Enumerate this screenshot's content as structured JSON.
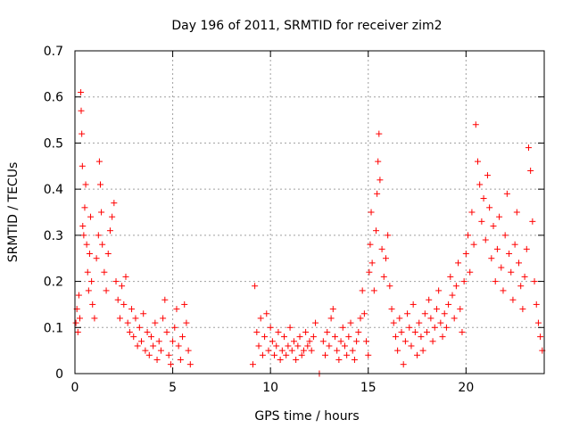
{
  "chart_data": {
    "type": "scatter",
    "title": "Day 196 of 2011, SRMTID for receiver zim2",
    "xlabel": "GPS time / hours",
    "ylabel": "SRMTID / TECUs",
    "xlim": [
      0,
      24
    ],
    "ylim": [
      0,
      0.7
    ],
    "x_ticks": [
      0,
      5,
      10,
      15,
      20
    ],
    "x_tick_labels": [
      "0",
      "5",
      "10",
      "15",
      "20"
    ],
    "y_ticks": [
      0,
      0.1,
      0.2,
      0.3,
      0.4,
      0.5,
      0.6,
      0.7
    ],
    "y_tick_labels": [
      "0",
      "0.1",
      "0.2",
      "0.3",
      "0.4",
      "0.5",
      "0.6",
      "0.7"
    ],
    "grid": true,
    "marker": "+",
    "series": [
      {
        "name": "SRMTID",
        "color": "#ff0000",
        "points": [
          [
            0.05,
            0.11
          ],
          [
            0.1,
            0.14
          ],
          [
            0.15,
            0.09
          ],
          [
            0.2,
            0.17
          ],
          [
            0.25,
            0.12
          ],
          [
            0.3,
            0.61
          ],
          [
            0.32,
            0.57
          ],
          [
            0.35,
            0.52
          ],
          [
            0.38,
            0.45
          ],
          [
            0.4,
            0.32
          ],
          [
            0.45,
            0.3
          ],
          [
            0.5,
            0.36
          ],
          [
            0.55,
            0.41
          ],
          [
            0.6,
            0.28
          ],
          [
            0.65,
            0.22
          ],
          [
            0.7,
            0.18
          ],
          [
            0.75,
            0.26
          ],
          [
            0.8,
            0.34
          ],
          [
            0.85,
            0.2
          ],
          [
            0.9,
            0.15
          ],
          [
            1.0,
            0.12
          ],
          [
            1.1,
            0.25
          ],
          [
            1.2,
            0.3
          ],
          [
            1.25,
            0.46
          ],
          [
            1.3,
            0.41
          ],
          [
            1.35,
            0.35
          ],
          [
            1.4,
            0.28
          ],
          [
            1.5,
            0.22
          ],
          [
            1.6,
            0.18
          ],
          [
            1.7,
            0.26
          ],
          [
            1.8,
            0.31
          ],
          [
            1.9,
            0.34
          ],
          [
            2.0,
            0.37
          ],
          [
            2.1,
            0.2
          ],
          [
            2.2,
            0.16
          ],
          [
            2.3,
            0.12
          ],
          [
            2.4,
            0.19
          ],
          [
            2.5,
            0.15
          ],
          [
            2.6,
            0.21
          ],
          [
            2.7,
            0.11
          ],
          [
            2.8,
            0.09
          ],
          [
            2.9,
            0.14
          ],
          [
            3.0,
            0.08
          ],
          [
            3.1,
            0.12
          ],
          [
            3.2,
            0.06
          ],
          [
            3.3,
            0.1
          ],
          [
            3.4,
            0.07
          ],
          [
            3.5,
            0.13
          ],
          [
            3.6,
            0.05
          ],
          [
            3.7,
            0.09
          ],
          [
            3.8,
            0.04
          ],
          [
            3.9,
            0.08
          ],
          [
            4.0,
            0.06
          ],
          [
            4.1,
            0.11
          ],
          [
            4.2,
            0.03
          ],
          [
            4.3,
            0.07
          ],
          [
            4.4,
            0.05
          ],
          [
            4.5,
            0.12
          ],
          [
            4.6,
            0.16
          ],
          [
            4.7,
            0.09
          ],
          [
            4.8,
            0.04
          ],
          [
            4.9,
            0.02
          ],
          [
            5.0,
            0.07
          ],
          [
            5.1,
            0.1
          ],
          [
            5.2,
            0.14
          ],
          [
            5.3,
            0.06
          ],
          [
            5.4,
            0.03
          ],
          [
            5.5,
            0.08
          ],
          [
            5.6,
            0.15
          ],
          [
            5.7,
            0.11
          ],
          [
            5.8,
            0.05
          ],
          [
            5.9,
            0.02
          ],
          [
            9.1,
            0.02
          ],
          [
            9.2,
            0.19
          ],
          [
            9.3,
            0.09
          ],
          [
            9.4,
            0.06
          ],
          [
            9.5,
            0.12
          ],
          [
            9.6,
            0.04
          ],
          [
            9.7,
            0.08
          ],
          [
            9.8,
            0.13
          ],
          [
            9.9,
            0.05
          ],
          [
            10.0,
            0.1
          ],
          [
            10.1,
            0.07
          ],
          [
            10.2,
            0.04
          ],
          [
            10.3,
            0.06
          ],
          [
            10.4,
            0.09
          ],
          [
            10.5,
            0.03
          ],
          [
            10.6,
            0.05
          ],
          [
            10.7,
            0.08
          ],
          [
            10.8,
            0.04
          ],
          [
            10.9,
            0.06
          ],
          [
            11.0,
            0.1
          ],
          [
            11.1,
            0.05
          ],
          [
            11.2,
            0.07
          ],
          [
            11.3,
            0.03
          ],
          [
            11.4,
            0.06
          ],
          [
            11.5,
            0.08
          ],
          [
            11.6,
            0.04
          ],
          [
            11.7,
            0.05
          ],
          [
            11.8,
            0.09
          ],
          [
            11.9,
            0.06
          ],
          [
            12.0,
            0.07
          ],
          [
            12.1,
            0.05
          ],
          [
            12.2,
            0.08
          ],
          [
            12.3,
            0.11
          ],
          [
            12.5,
            0.0
          ],
          [
            12.7,
            0.07
          ],
          [
            12.8,
            0.04
          ],
          [
            12.9,
            0.09
          ],
          [
            13.0,
            0.06
          ],
          [
            13.1,
            0.12
          ],
          [
            13.2,
            0.14
          ],
          [
            13.3,
            0.08
          ],
          [
            13.4,
            0.05
          ],
          [
            13.5,
            0.03
          ],
          [
            13.6,
            0.07
          ],
          [
            13.7,
            0.1
          ],
          [
            13.8,
            0.06
          ],
          [
            13.9,
            0.04
          ],
          [
            14.0,
            0.08
          ],
          [
            14.1,
            0.11
          ],
          [
            14.2,
            0.05
          ],
          [
            14.3,
            0.03
          ],
          [
            14.4,
            0.07
          ],
          [
            14.5,
            0.09
          ],
          [
            14.6,
            0.12
          ],
          [
            14.7,
            0.18
          ],
          [
            14.8,
            0.13
          ],
          [
            14.9,
            0.07
          ],
          [
            15.0,
            0.04
          ],
          [
            15.05,
            0.22
          ],
          [
            15.1,
            0.28
          ],
          [
            15.15,
            0.35
          ],
          [
            15.2,
            0.24
          ],
          [
            15.3,
            0.18
          ],
          [
            15.4,
            0.31
          ],
          [
            15.45,
            0.39
          ],
          [
            15.5,
            0.46
          ],
          [
            15.55,
            0.52
          ],
          [
            15.6,
            0.42
          ],
          [
            15.7,
            0.27
          ],
          [
            15.8,
            0.21
          ],
          [
            15.9,
            0.25
          ],
          [
            16.0,
            0.3
          ],
          [
            16.1,
            0.19
          ],
          [
            16.2,
            0.14
          ],
          [
            16.3,
            0.11
          ],
          [
            16.4,
            0.08
          ],
          [
            16.5,
            0.05
          ],
          [
            16.6,
            0.12
          ],
          [
            16.7,
            0.09
          ],
          [
            16.8,
            0.02
          ],
          [
            16.9,
            0.07
          ],
          [
            17.0,
            0.13
          ],
          [
            17.1,
            0.1
          ],
          [
            17.2,
            0.06
          ],
          [
            17.3,
            0.15
          ],
          [
            17.4,
            0.09
          ],
          [
            17.5,
            0.04
          ],
          [
            17.6,
            0.11
          ],
          [
            17.7,
            0.08
          ],
          [
            17.8,
            0.05
          ],
          [
            17.9,
            0.13
          ],
          [
            18.0,
            0.09
          ],
          [
            18.1,
            0.16
          ],
          [
            18.2,
            0.12
          ],
          [
            18.3,
            0.07
          ],
          [
            18.4,
            0.1
          ],
          [
            18.5,
            0.14
          ],
          [
            18.6,
            0.18
          ],
          [
            18.7,
            0.11
          ],
          [
            18.8,
            0.08
          ],
          [
            18.9,
            0.13
          ],
          [
            19.0,
            0.1
          ],
          [
            19.1,
            0.15
          ],
          [
            19.2,
            0.21
          ],
          [
            19.3,
            0.17
          ],
          [
            19.4,
            0.12
          ],
          [
            19.5,
            0.19
          ],
          [
            19.6,
            0.24
          ],
          [
            19.7,
            0.14
          ],
          [
            19.8,
            0.09
          ],
          [
            19.9,
            0.2
          ],
          [
            20.0,
            0.26
          ],
          [
            20.1,
            0.3
          ],
          [
            20.2,
            0.22
          ],
          [
            20.3,
            0.35
          ],
          [
            20.4,
            0.28
          ],
          [
            20.5,
            0.54
          ],
          [
            20.6,
            0.46
          ],
          [
            20.7,
            0.41
          ],
          [
            20.8,
            0.33
          ],
          [
            20.9,
            0.38
          ],
          [
            21.0,
            0.29
          ],
          [
            21.1,
            0.43
          ],
          [
            21.2,
            0.36
          ],
          [
            21.3,
            0.25
          ],
          [
            21.4,
            0.32
          ],
          [
            21.5,
            0.2
          ],
          [
            21.6,
            0.27
          ],
          [
            21.7,
            0.34
          ],
          [
            21.8,
            0.23
          ],
          [
            21.9,
            0.18
          ],
          [
            22.0,
            0.3
          ],
          [
            22.1,
            0.39
          ],
          [
            22.2,
            0.26
          ],
          [
            22.3,
            0.22
          ],
          [
            22.4,
            0.16
          ],
          [
            22.5,
            0.28
          ],
          [
            22.6,
            0.35
          ],
          [
            22.7,
            0.24
          ],
          [
            22.8,
            0.19
          ],
          [
            22.9,
            0.14
          ],
          [
            23.0,
            0.21
          ],
          [
            23.1,
            0.27
          ],
          [
            23.2,
            0.49
          ],
          [
            23.3,
            0.44
          ],
          [
            23.4,
            0.33
          ],
          [
            23.5,
            0.2
          ],
          [
            23.6,
            0.15
          ],
          [
            23.7,
            0.11
          ],
          [
            23.8,
            0.08
          ],
          [
            23.9,
            0.05
          ]
        ]
      }
    ]
  }
}
